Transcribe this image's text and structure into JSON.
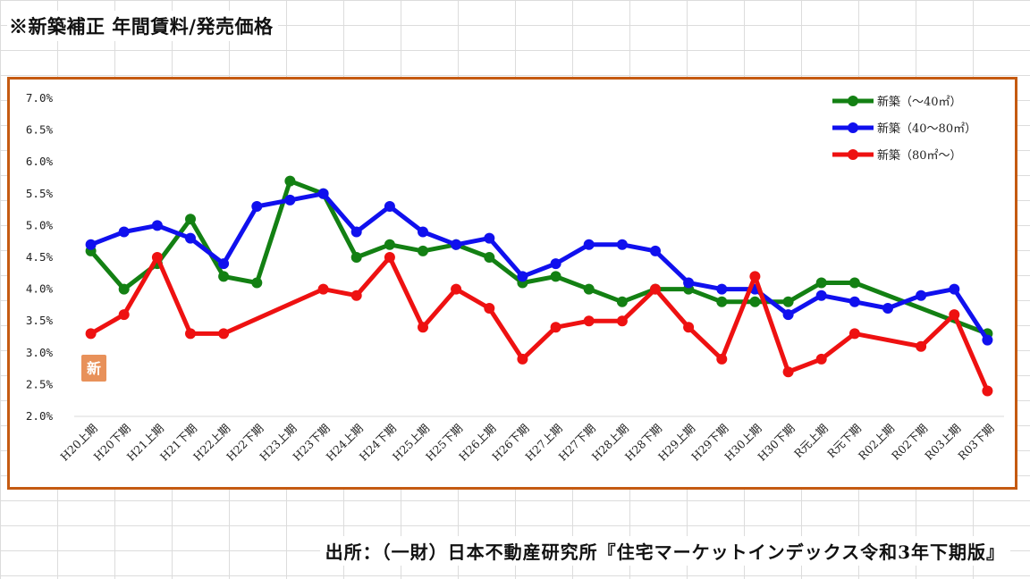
{
  "header": {
    "title": "※新築補正 年間賃料/発売価格"
  },
  "footer": {
    "source": "出所：（一財）日本不動産研究所『住宅マーケットインデックス令和3年下期版』"
  },
  "badge": {
    "text": "新",
    "color": "#e8915a"
  },
  "colors": {
    "frame": "#c55a11",
    "grid": "#dcdcdc"
  },
  "chart_data": {
    "type": "line",
    "title": "",
    "xlabel": "",
    "ylabel": "",
    "ylim": [
      2.0,
      7.0
    ],
    "y_ticks": [
      "7.0%",
      "6.5%",
      "6.0%",
      "5.5%",
      "5.0%",
      "4.5%",
      "4.0%",
      "3.5%",
      "3.0%",
      "2.5%",
      "2.0%"
    ],
    "grid": false,
    "legend_position": "top-right",
    "categories": [
      "H20上期",
      "H20下期",
      "H21上期",
      "H21下期",
      "H22上期",
      "H22下期",
      "H23上期",
      "H23下期",
      "H24上期",
      "H24下期",
      "H25上期",
      "H25下期",
      "H26上期",
      "H26下期",
      "H27上期",
      "H27下期",
      "H28上期",
      "H28下期",
      "H29上期",
      "H29下期",
      "H30上期",
      "H30下期",
      "R元上期",
      "R元下期",
      "R02上期",
      "R02下期",
      "R03上期",
      "R03下期"
    ],
    "series": [
      {
        "name": "新築（～40㎡）",
        "color": "#138013",
        "values": [
          4.6,
          4.0,
          4.4,
          5.1,
          4.2,
          4.1,
          5.7,
          5.5,
          4.5,
          4.7,
          4.6,
          4.7,
          4.5,
          4.1,
          4.2,
          4.0,
          3.8,
          4.0,
          4.0,
          3.8,
          3.8,
          3.8,
          4.1,
          4.1,
          null,
          null,
          null,
          3.3
        ]
      },
      {
        "name": "新築（40～80㎡）",
        "color": "#1010ee",
        "values": [
          4.7,
          4.9,
          5.0,
          4.8,
          4.4,
          5.3,
          5.4,
          5.5,
          4.9,
          5.3,
          4.9,
          4.7,
          4.8,
          4.2,
          4.4,
          4.7,
          4.7,
          4.6,
          4.1,
          4.0,
          4.0,
          3.6,
          3.9,
          3.8,
          3.7,
          3.9,
          4.0,
          3.2
        ]
      },
      {
        "name": "新築（80㎡～）",
        "color": "#ee1111",
        "values": [
          3.3,
          3.6,
          4.5,
          3.3,
          3.3,
          null,
          null,
          4.0,
          3.9,
          4.5,
          3.4,
          4.0,
          3.7,
          2.9,
          3.4,
          3.5,
          3.5,
          4.0,
          3.4,
          2.9,
          4.2,
          2.7,
          2.9,
          3.3,
          null,
          3.1,
          3.6,
          2.4
        ]
      }
    ]
  }
}
